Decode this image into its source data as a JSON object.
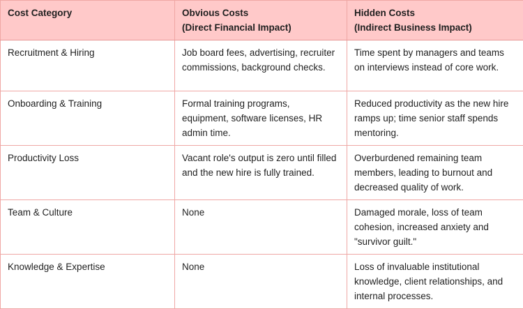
{
  "table": {
    "colors": {
      "header_bg": "#ffc9c9",
      "border": "#efa7a4",
      "text": "#1f1f1f",
      "body_bg": "#ffffff"
    },
    "columns": [
      {
        "label": "Cost Category",
        "sublabel": ""
      },
      {
        "label": "Obvious Costs",
        "sublabel": "(Direct Financial Impact)"
      },
      {
        "label": "Hidden Costs",
        "sublabel": "(Indirect Business Impact)"
      }
    ],
    "rows": [
      {
        "category": "Recruitment & Hiring",
        "obvious": "Job board fees, advertising, recruiter commissions, background checks.",
        "hidden": "Time spent by managers and teams on interviews instead of core work."
      },
      {
        "category": "Onboarding & Training",
        "obvious": "Formal training programs, equipment, software licenses, HR admin time.",
        "hidden": "Reduced productivity as the new hire ramps up; time senior staff spends mentoring."
      },
      {
        "category": "Productivity Loss",
        "obvious": "Vacant role's output is zero until filled and the new hire is fully trained.",
        "hidden": "Overburdened remaining team members, leading to burnout and decreased quality of work."
      },
      {
        "category": "Team & Culture",
        "obvious": "None",
        "hidden": "Damaged morale, loss of team cohesion, increased anxiety and \"survivor guilt.\""
      },
      {
        "category": "Knowledge & Expertise",
        "obvious": "None",
        "hidden": "Loss of invaluable institutional knowledge, client relationships, and internal processes."
      }
    ]
  }
}
